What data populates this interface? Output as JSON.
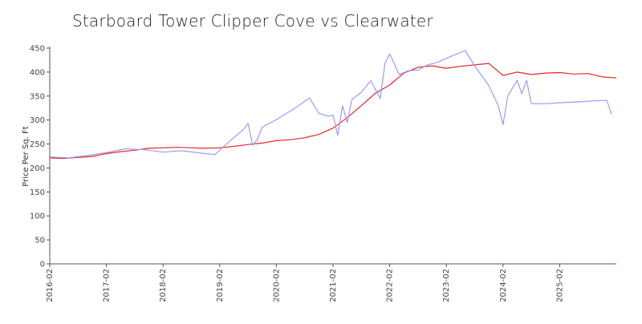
{
  "chart_data": {
    "type": "line",
    "title": "Starboard Tower Clipper Cove vs Clearwater",
    "xlabel": "",
    "ylabel": "Price Per Sq. Ft",
    "ylim": [
      0,
      450
    ],
    "yticks": [
      0,
      50,
      100,
      150,
      200,
      250,
      300,
      350,
      400,
      450
    ],
    "xlim": [
      "2016-02",
      "2026-02"
    ],
    "xticks": [
      "2016-02",
      "2017-02",
      "2018-02",
      "2019-02",
      "2020-02",
      "2021-02",
      "2022-02",
      "2023-02",
      "2024-02",
      "2025-02"
    ],
    "grid": false,
    "legend": "none",
    "series": [
      {
        "color": "#e8232b",
        "points": [
          [
            "2016-02",
            221
          ],
          [
            "2016-05",
            220
          ],
          [
            "2016-08",
            222
          ],
          [
            "2016-11",
            224
          ],
          [
            "2017-02",
            230
          ],
          [
            "2017-05",
            234
          ],
          [
            "2017-08",
            237
          ],
          [
            "2017-11",
            241
          ],
          [
            "2018-02",
            242
          ],
          [
            "2018-05",
            243
          ],
          [
            "2018-08",
            242
          ],
          [
            "2018-11",
            241
          ],
          [
            "2019-02",
            242
          ],
          [
            "2019-05",
            245
          ],
          [
            "2019-08",
            249
          ],
          [
            "2019-11",
            252
          ],
          [
            "2020-02",
            257
          ],
          [
            "2020-05",
            259
          ],
          [
            "2020-08",
            263
          ],
          [
            "2020-11",
            270
          ],
          [
            "2021-02",
            283
          ],
          [
            "2021-05",
            305
          ],
          [
            "2021-08",
            330
          ],
          [
            "2021-11",
            356
          ],
          [
            "2022-02",
            373
          ],
          [
            "2022-05",
            398
          ],
          [
            "2022-08",
            410
          ],
          [
            "2022-11",
            413
          ],
          [
            "2023-02",
            408
          ],
          [
            "2023-05",
            412
          ],
          [
            "2023-08",
            415
          ],
          [
            "2023-11",
            418
          ],
          [
            "2024-02",
            393
          ],
          [
            "2024-05",
            400
          ],
          [
            "2024-08",
            395
          ],
          [
            "2024-11",
            398
          ],
          [
            "2025-02",
            399
          ],
          [
            "2025-05",
            396
          ],
          [
            "2025-08",
            397
          ],
          [
            "2025-11",
            390
          ],
          [
            "2026-02",
            388
          ]
        ]
      },
      {
        "color": "#9b9bf2",
        "points": [
          [
            "2016-02",
            223
          ],
          [
            "2016-06",
            221
          ],
          [
            "2016-10",
            226
          ],
          [
            "2017-02",
            232
          ],
          [
            "2017-06",
            240
          ],
          [
            "2017-10",
            238
          ],
          [
            "2018-02",
            233
          ],
          [
            "2018-06",
            236
          ],
          [
            "2018-10",
            231
          ],
          [
            "2019-01",
            228
          ],
          [
            "2019-04",
            255
          ],
          [
            "2019-07",
            280
          ],
          [
            "2019-08",
            293
          ],
          [
            "2019-09",
            247
          ],
          [
            "2019-10",
            260
          ],
          [
            "2019-11",
            285
          ],
          [
            "2020-02",
            301
          ],
          [
            "2020-06",
            325
          ],
          [
            "2020-09",
            346
          ],
          [
            "2020-11",
            314
          ],
          [
            "2021-01",
            308
          ],
          [
            "2021-02",
            310
          ],
          [
            "2021-03",
            268
          ],
          [
            "2021-04",
            330
          ],
          [
            "2021-05",
            295
          ],
          [
            "2021-06",
            343
          ],
          [
            "2021-08",
            358
          ],
          [
            "2021-10",
            382
          ],
          [
            "2021-12",
            345
          ],
          [
            "2022-01",
            418
          ],
          [
            "2022-02",
            438
          ],
          [
            "2022-04",
            395
          ],
          [
            "2022-06",
            403
          ],
          [
            "2022-08",
            404
          ],
          [
            "2022-10",
            415
          ],
          [
            "2022-12",
            420
          ],
          [
            "2023-03",
            433
          ],
          [
            "2023-06",
            445
          ],
          [
            "2023-08",
            413
          ],
          [
            "2023-11",
            372
          ],
          [
            "2024-01",
            330
          ],
          [
            "2024-02",
            290
          ],
          [
            "2024-03",
            350
          ],
          [
            "2024-05",
            383
          ],
          [
            "2024-06",
            355
          ],
          [
            "2024-07",
            383
          ],
          [
            "2024-08",
            334
          ],
          [
            "2024-11",
            334
          ],
          [
            "2025-02",
            336
          ],
          [
            "2025-06",
            338
          ],
          [
            "2025-09",
            340
          ],
          [
            "2025-12",
            341
          ],
          [
            "2026-01",
            312
          ]
        ]
      }
    ]
  }
}
